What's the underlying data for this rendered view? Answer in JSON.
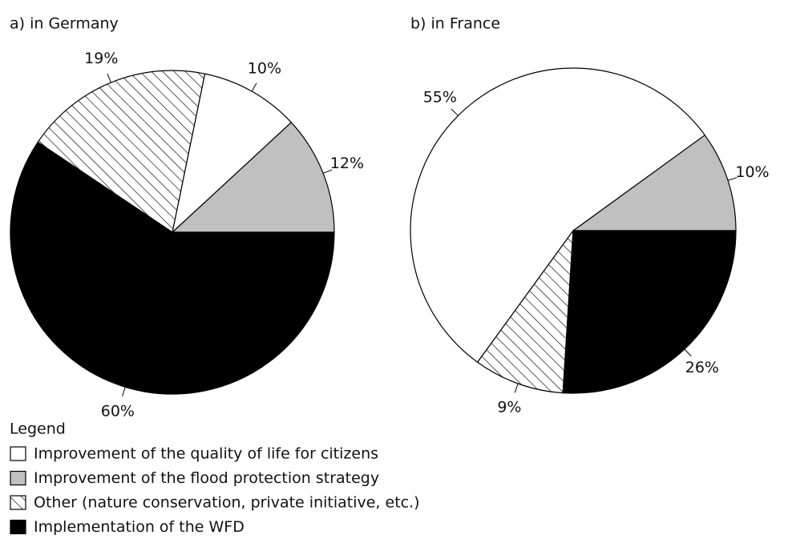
{
  "chart_data": [
    {
      "type": "pie",
      "title": "a) in Germany",
      "categories": [
        "Improvement of the flood protection strategy",
        "Improvement of the quality of life for citizens",
        "Other (nature conservation, private initiative, etc.)",
        "Implementation of the WFD"
      ],
      "values": [
        12,
        10,
        19,
        60
      ],
      "value_labels": [
        "12%",
        "10%",
        "19%",
        "60%"
      ],
      "colors": [
        "#c0c0c0",
        "#ffffff",
        "url(#hatch)",
        "#000000"
      ]
    },
    {
      "type": "pie",
      "title": "b) in France",
      "categories": [
        "Improvement of the flood protection strategy",
        "Improvement of the quality of life for citizens",
        "Other (nature conservation, private initiative, etc.)",
        "Implementation of the WFD"
      ],
      "values": [
        10,
        55,
        9,
        26
      ],
      "value_labels": [
        "10%",
        "55%",
        "9%",
        "26%"
      ],
      "colors": [
        "#c0c0c0",
        "#ffffff",
        "url(#hatch)",
        "#000000"
      ]
    }
  ],
  "legend": {
    "title": "Legend"
  }
}
